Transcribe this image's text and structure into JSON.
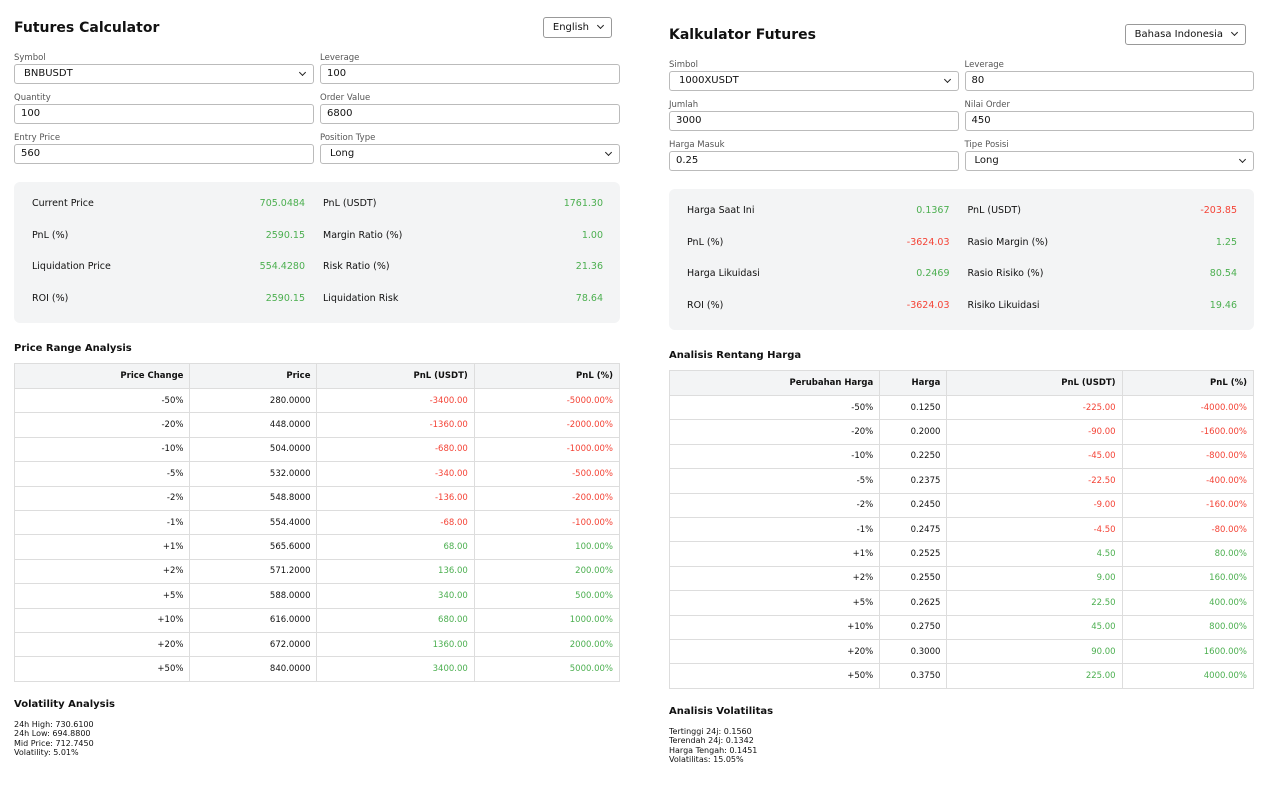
{
  "panels": [
    {
      "title": "Futures Calculator",
      "language": "English",
      "fields": [
        {
          "label": "Symbol",
          "value": "BNBUSDT"
        },
        {
          "label": "Leverage",
          "value": "100"
        },
        {
          "label": "Quantity",
          "value": "100"
        },
        {
          "label": "Order Value",
          "value": "6800"
        },
        {
          "label": "Entry Price",
          "value": "560"
        },
        {
          "label": "Position Type",
          "value": "Long"
        }
      ],
      "stats": [
        {
          "label": "Current Price",
          "value": "705.0484"
        },
        {
          "label": "PnL (USDT)",
          "value": "1761.30"
        },
        {
          "label": "PnL (%)",
          "value": "2590.15"
        },
        {
          "label": "Margin Ratio (%)",
          "value": "1.00"
        },
        {
          "label": "Liquidation Price",
          "value": "554.4280"
        },
        {
          "label": "Risk Ratio (%)",
          "value": "21.36"
        },
        {
          "label": "ROI (%)",
          "value": "2590.15"
        },
        {
          "label": "Liquidation Risk",
          "value": "78.64"
        }
      ],
      "price_range": {
        "title": "Price Range Analysis",
        "columns": [
          "Price Change",
          "Price",
          "PnL (USDT)",
          "PnL (%)"
        ],
        "rows": [
          [
            "-50%",
            "280.0000",
            "-3400.00",
            "-5000.00%"
          ],
          [
            "-20%",
            "448.0000",
            "-1360.00",
            "-2000.00%"
          ],
          [
            "-10%",
            "504.0000",
            "-680.00",
            "-1000.00%"
          ],
          [
            "-5%",
            "532.0000",
            "-340.00",
            "-500.00%"
          ],
          [
            "-2%",
            "548.8000",
            "-136.00",
            "-200.00%"
          ],
          [
            "-1%",
            "554.4000",
            "-68.00",
            "-100.00%"
          ],
          [
            "+1%",
            "565.6000",
            "68.00",
            "100.00%"
          ],
          [
            "+2%",
            "571.2000",
            "136.00",
            "200.00%"
          ],
          [
            "+5%",
            "588.0000",
            "340.00",
            "500.00%"
          ],
          [
            "+10%",
            "616.0000",
            "680.00",
            "1000.00%"
          ],
          [
            "+20%",
            "672.0000",
            "1360.00",
            "2000.00%"
          ],
          [
            "+50%",
            "840.0000",
            "3400.00",
            "5000.00%"
          ]
        ]
      },
      "volatility": {
        "title": "Volatility Analysis",
        "lines": [
          "24h High: 730.6100",
          "24h Low: 694.8800",
          "Mid Price: 712.7450",
          "Volatility: 5.01%"
        ]
      }
    },
    {
      "title": "Kalkulator Futures",
      "language": "Bahasa Indonesia",
      "fields": [
        {
          "label": "Simbol",
          "value": "1000XUSDT"
        },
        {
          "label": "Leverage",
          "value": "80"
        },
        {
          "label": "Jumlah",
          "value": "3000"
        },
        {
          "label": "Nilai Order",
          "value": "450"
        },
        {
          "label": "Harga Masuk",
          "value": "0.25"
        },
        {
          "label": "Tipe Posisi",
          "value": "Long"
        }
      ],
      "stats": [
        {
          "label": "Harga Saat Ini",
          "value": "0.1367"
        },
        {
          "label": "PnL (USDT)",
          "value": "-203.85"
        },
        {
          "label": "PnL (%)",
          "value": "-3624.03"
        },
        {
          "label": "Rasio Margin (%)",
          "value": "1.25"
        },
        {
          "label": "Harga Likuidasi",
          "value": "0.2469"
        },
        {
          "label": "Rasio Risiko (%)",
          "value": "80.54"
        },
        {
          "label": "ROI (%)",
          "value": "-3624.03"
        },
        {
          "label": "Risiko Likuidasi",
          "value": "19.46"
        }
      ],
      "price_range": {
        "title": "Analisis Rentang Harga",
        "columns": [
          "Perubahan Harga",
          "Harga",
          "PnL (USDT)",
          "PnL (%)"
        ],
        "rows": [
          [
            "-50%",
            "0.1250",
            "-225.00",
            "-4000.00%"
          ],
          [
            "-20%",
            "0.2000",
            "-90.00",
            "-1600.00%"
          ],
          [
            "-10%",
            "0.2250",
            "-45.00",
            "-800.00%"
          ],
          [
            "-5%",
            "0.2375",
            "-22.50",
            "-400.00%"
          ],
          [
            "-2%",
            "0.2450",
            "-9.00",
            "-160.00%"
          ],
          [
            "-1%",
            "0.2475",
            "-4.50",
            "-80.00%"
          ],
          [
            "+1%",
            "0.2525",
            "4.50",
            "80.00%"
          ],
          [
            "+2%",
            "0.2550",
            "9.00",
            "160.00%"
          ],
          [
            "+5%",
            "0.2625",
            "22.50",
            "400.00%"
          ],
          [
            "+10%",
            "0.2750",
            "45.00",
            "800.00%"
          ],
          [
            "+20%",
            "0.3000",
            "90.00",
            "1600.00%"
          ],
          [
            "+50%",
            "0.3750",
            "225.00",
            "4000.00%"
          ]
        ]
      },
      "volatility": {
        "title": "Analisis Volatilitas",
        "lines": [
          "Tertinggi 24j: 0.1560",
          "Terendah 24j: 0.1342",
          "Harga Tengah: 0.1451",
          "Volatilitas: 15.05%"
        ]
      }
    }
  ]
}
